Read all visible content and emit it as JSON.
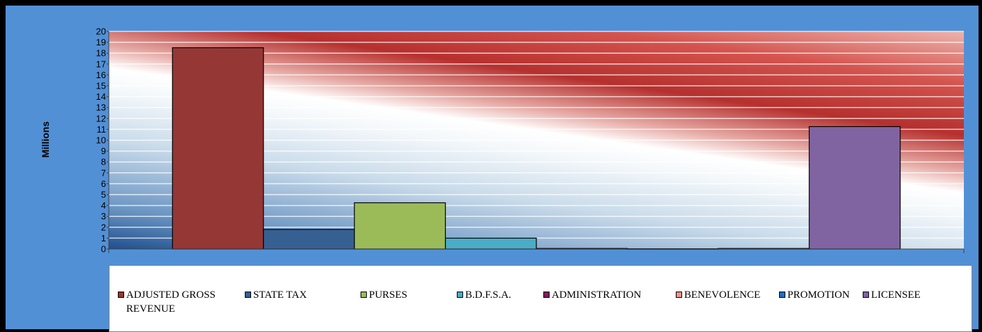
{
  "chart_data": {
    "type": "bar",
    "ylabel": "Millions",
    "ylim": [
      0,
      20
    ],
    "yticks": [
      "0",
      "1",
      "2",
      "3",
      "4",
      "5",
      "6",
      "7",
      "8",
      "9",
      "10",
      "11",
      "12",
      "13",
      "14",
      "15",
      "16",
      "17",
      "18",
      "19",
      "20"
    ],
    "grid": true,
    "legend_position": "bottom",
    "series": [
      {
        "name": "ADJUSTED GROSS REVENUE",
        "values": [
          18.5
        ],
        "color": "#953735"
      },
      {
        "name": "STATE TAX",
        "values": [
          1.8
        ],
        "color": "#376092"
      },
      {
        "name": "PURSES",
        "values": [
          4.25
        ],
        "color": "#9bbb59"
      },
      {
        "name": "B.D.F.S.A.",
        "values": [
          1.0
        ],
        "color": "#4bacc6"
      },
      {
        "name": "ADMINISTRATION",
        "values": [
          0.05
        ],
        "color": "#7f1e5a"
      },
      {
        "name": "BENEVOLENCE",
        "values": [
          0.02
        ],
        "color": "#f2928c"
      },
      {
        "name": "PROMOTION",
        "values": [
          0.05
        ],
        "color": "#1f6ec1"
      },
      {
        "name": "LICENSEE",
        "values": [
          11.25
        ],
        "color": "#8064a2"
      }
    ]
  }
}
